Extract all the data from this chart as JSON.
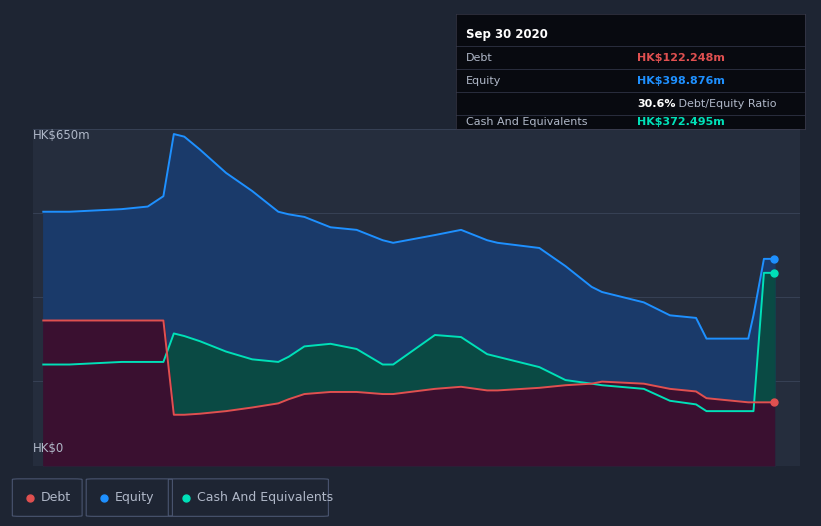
{
  "bg_color": "#1e2533",
  "plot_bg_color": "#252d3d",
  "grid_color": "#3a4459",
  "equity_color": "#1e90ff",
  "equity_fill": "#1a3a6a",
  "cash_color": "#00e0b8",
  "cash_fill": "#0a4a44",
  "debt_color": "#e05050",
  "debt_fill": "#3a1030",
  "text_color": "#b0b8c8",
  "tooltip_bg": "#080a10",
  "title_text": "Sep 30 2020",
  "debt_label": "Debt",
  "equity_label": "Equity",
  "cash_label": "Cash And Equivalents",
  "debt_value": "HK$122.248m",
  "equity_value": "HK$398.876m",
  "ratio_bold": "30.6%",
  "ratio_rest": " Debt/Equity Ratio",
  "cash_value": "HK$372.495m",
  "ylabel_top": "HK$650m",
  "ylabel_bottom": "HK$0",
  "ylim": [
    0,
    650
  ],
  "equity_x": [
    2013.75,
    2014.0,
    2014.5,
    2014.75,
    2014.9,
    2015.0,
    2015.1,
    2015.25,
    2015.5,
    2015.75,
    2016.0,
    2016.1,
    2016.25,
    2016.5,
    2016.75,
    2017.0,
    2017.1,
    2017.5,
    2017.75,
    2018.0,
    2018.1,
    2018.5,
    2018.75,
    2019.0,
    2019.1,
    2019.5,
    2019.75,
    2020.0,
    2020.1,
    2020.5,
    2020.55,
    2020.65,
    2020.75
  ],
  "equity_y": [
    490,
    490,
    495,
    500,
    520,
    640,
    635,
    610,
    565,
    530,
    490,
    485,
    480,
    460,
    455,
    435,
    430,
    445,
    455,
    435,
    430,
    420,
    385,
    345,
    335,
    315,
    290,
    285,
    245,
    245,
    290,
    399,
    399
  ],
  "cash_x": [
    2013.75,
    2014.0,
    2014.5,
    2014.75,
    2014.9,
    2015.0,
    2015.1,
    2015.25,
    2015.5,
    2015.75,
    2016.0,
    2016.1,
    2016.25,
    2016.5,
    2016.75,
    2017.0,
    2017.1,
    2017.5,
    2017.75,
    2018.0,
    2018.1,
    2018.5,
    2018.75,
    2019.0,
    2019.1,
    2019.5,
    2019.75,
    2020.0,
    2020.1,
    2020.5,
    2020.55,
    2020.65,
    2020.75
  ],
  "cash_y": [
    195,
    195,
    200,
    200,
    200,
    255,
    250,
    240,
    220,
    205,
    200,
    210,
    230,
    235,
    225,
    195,
    195,
    252,
    248,
    215,
    210,
    190,
    165,
    158,
    155,
    148,
    125,
    118,
    105,
    105,
    105,
    372,
    372
  ],
  "debt_x": [
    2013.75,
    2014.0,
    2014.5,
    2014.75,
    2014.9,
    2015.0,
    2015.1,
    2015.25,
    2015.5,
    2015.75,
    2016.0,
    2016.1,
    2016.25,
    2016.5,
    2016.75,
    2017.0,
    2017.1,
    2017.5,
    2017.75,
    2018.0,
    2018.1,
    2018.5,
    2018.75,
    2019.0,
    2019.1,
    2019.5,
    2019.75,
    2020.0,
    2020.1,
    2020.5,
    2020.55,
    2020.65,
    2020.75
  ],
  "debt_y": [
    280,
    280,
    280,
    280,
    280,
    98,
    98,
    100,
    105,
    112,
    120,
    128,
    138,
    142,
    142,
    138,
    138,
    148,
    152,
    145,
    145,
    150,
    155,
    158,
    162,
    158,
    148,
    143,
    130,
    122,
    122,
    122,
    122
  ],
  "xticks": [
    2014,
    2015,
    2016,
    2017,
    2018,
    2019,
    2020
  ],
  "xlim_start": 2013.65,
  "xlim_end": 2021.0
}
